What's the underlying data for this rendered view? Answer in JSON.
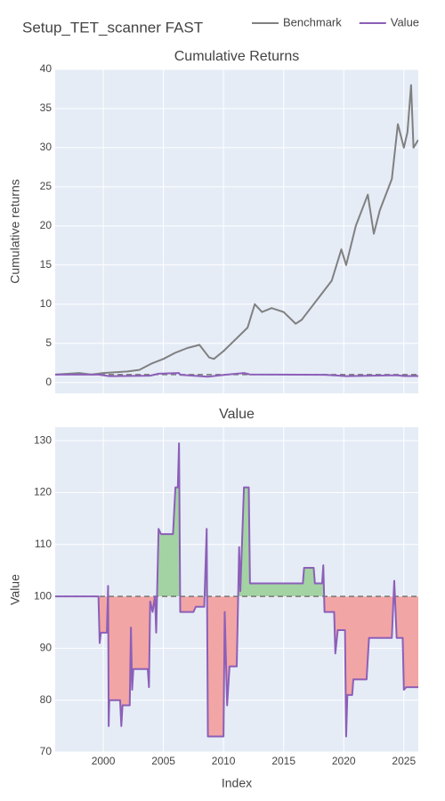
{
  "title": "Setup_TET_scanner FAST",
  "chart_data": [
    {
      "type": "line",
      "title": "Cumulative Returns",
      "y_label": "Cumulative returns",
      "xlim": [
        1996,
        2026.2
      ],
      "xticks": [
        2000,
        2005,
        2010,
        2015,
        2020,
        2025
      ],
      "xtick_labels_visible": false,
      "ylim": [
        -1.4,
        40
      ],
      "yticks": [
        0,
        5,
        10,
        15,
        20,
        25,
        30,
        35,
        40
      ],
      "grid": true,
      "baseline": 1,
      "series": [
        {
          "name": "Benchmark",
          "color": "#808080",
          "x": [
            1996,
            1997,
            1998,
            1999,
            2000,
            2001,
            2002,
            2003,
            2004,
            2005,
            2006,
            2007,
            2008,
            2008.8,
            2009.2,
            2010,
            2011,
            2012,
            2012.6,
            2013.2,
            2014,
            2015,
            2016,
            2016.5,
            2017,
            2018,
            2019,
            2019.8,
            2020.2,
            2021,
            2022,
            2022.5,
            2023,
            2024,
            2024.5,
            2025,
            2025.3,
            2025.6,
            2025.8,
            2026.2
          ],
          "values": [
            1,
            1.1,
            1.2,
            1,
            1.2,
            1.3,
            1.4,
            1.6,
            2.4,
            3,
            3.8,
            4.4,
            4.8,
            3.2,
            3,
            4,
            5.5,
            7,
            10,
            9,
            9.5,
            9,
            7.5,
            8,
            9,
            11,
            13,
            17,
            15,
            20,
            24,
            19,
            22,
            26,
            33,
            30,
            32,
            38,
            30,
            31
          ]
        },
        {
          "name": "Value",
          "color": "#8c5fb8",
          "x": [
            1996,
            1999.6,
            2000.5,
            2003.9,
            2004.6,
            2006.3,
            2006.4,
            2008.7,
            2010.1,
            2011.7,
            2012.2,
            2018.4,
            2020.2,
            2024.4,
            2025,
            2026.2
          ],
          "values": [
            1,
            1,
            0.8,
            0.86,
            1.12,
            1.2,
            0.97,
            0.73,
            0.97,
            1.2,
            1.02,
            0.97,
            0.81,
            0.92,
            0.82,
            0.82
          ]
        }
      ]
    },
    {
      "type": "line",
      "title": "Value",
      "x_label": "Index",
      "y_label": "Value",
      "xlim": [
        1996,
        2026.2
      ],
      "xticks": [
        2000,
        2005,
        2010,
        2015,
        2020,
        2025
      ],
      "xtick_labels_visible": true,
      "ylim": [
        70,
        132.6
      ],
      "yticks": [
        70,
        80,
        90,
        100,
        110,
        120,
        130
      ],
      "grid": true,
      "baseline": 100,
      "fill_above": "#a3d3a3",
      "fill_below": "#f2a5a5",
      "series": [
        {
          "name": "Value",
          "color": "#8c5fb8",
          "x": [
            1996,
            1999.6,
            1999.7,
            1999.8,
            2000.3,
            2000.4,
            2000.45,
            2000.5,
            2001.4,
            2001.5,
            2001.6,
            2002.2,
            2002.3,
            2002.4,
            2002.5,
            2003.7,
            2003.8,
            2003.9,
            2004.1,
            2004.3,
            2004.4,
            2004.6,
            2004.8,
            2005.8,
            2006.0,
            2006.2,
            2006.3,
            2006.4,
            2007.5,
            2007.7,
            2008.4,
            2008.6,
            2008.7,
            2010.0,
            2010.1,
            2010.3,
            2010.5,
            2011.1,
            2011.3,
            2011.4,
            2011.7,
            2012.1,
            2012.2,
            2016.6,
            2016.7,
            2017.5,
            2017.6,
            2018.2,
            2018.3,
            2018.4,
            2019.2,
            2019.3,
            2019.5,
            2020.1,
            2020.2,
            2020.3,
            2020.7,
            2020.8,
            2021.9,
            2022.1,
            2024.0,
            2024.2,
            2024.4,
            2024.9,
            2025.0,
            2025.2,
            2026.2
          ],
          "values": [
            100,
            100,
            91,
            93,
            93,
            102,
            75,
            80,
            80,
            75,
            79,
            79,
            94,
            82,
            86,
            86,
            82.5,
            99,
            97,
            100,
            93,
            113,
            112,
            112,
            121,
            121,
            129.5,
            97,
            97,
            98,
            98,
            113,
            73,
            73,
            97,
            79,
            86.5,
            86.5,
            109.5,
            101,
            121,
            121,
            102.5,
            102.5,
            105.5,
            105.5,
            102.5,
            102.5,
            106,
            97,
            97,
            89,
            93.5,
            93.5,
            73,
            81,
            81,
            84,
            84,
            92,
            92,
            103,
            92,
            92,
            82,
            82.5,
            82.5
          ]
        }
      ]
    }
  ]
}
